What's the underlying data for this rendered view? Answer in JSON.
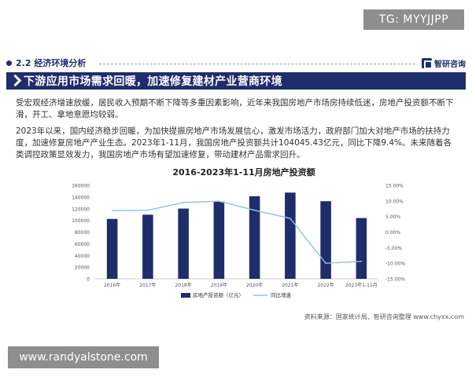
{
  "watermark_top": "TG: MYYJJPP",
  "section": {
    "label": "2.2 经济环境分析",
    "brand": "智研咨询"
  },
  "banner": {
    "title": "下游应用市场需求回暖，加速修复建材产业营商环境"
  },
  "paragraphs": [
    "受宏观经济增速放缓，居民收入预期不断下降等多重因素影响，近年来我国房地产市场房持续低迷，房地产投资额不断下滑，开工、拿地意愿均较弱。",
    "2023年以来，国内经济稳步回暖，为加快提振房地产市场发展信心，激发市场活力，政府部门加大对地产市场的扶持力度，加速修复房地产产业生态。2023年1-11月，我国房地产投资额共计104045.43亿元，同比下降9.4%。未来随着各类调控政策显效发力，我国房地产市场有望加速修复，带动建材产品需求回升。"
  ],
  "chart_data": {
    "type": "bar",
    "title": "2016-2023年1-11月房地产投资额",
    "categories": [
      "2016年",
      "2017年",
      "2018年",
      "2019年",
      "2020年",
      "2021年",
      "2022年",
      "2023年1-11月"
    ],
    "series": [
      {
        "name": "房地产投资额（亿元）",
        "type": "bar",
        "axis": "left",
        "values": [
          102581,
          109799,
          120264,
          132194,
          141443,
          147602,
          132895,
          104045
        ]
      },
      {
        "name": "同比增速",
        "type": "line",
        "axis": "right",
        "values": [
          6.9,
          7.0,
          9.5,
          9.9,
          7.0,
          4.4,
          -10.0,
          -9.4
        ]
      }
    ],
    "ylim_left": [
      0,
      160000
    ],
    "yticks_left": [
      "0",
      "20000",
      "40000",
      "60000",
      "80000",
      "100000",
      "120000",
      "140000",
      "160000"
    ],
    "ylim_right": [
      -15,
      15
    ],
    "yticks_right": [
      "-15.00%",
      "-10.00%",
      "-5.00%",
      "0.00%",
      "5.00%",
      "10.00%",
      "15.00%"
    ],
    "legend_position": "bottom",
    "colors": {
      "bar": "#1f2d6b",
      "line": "#8fc3dc"
    }
  },
  "source": "资料来源：国家统计局、智研咨询整理 www.chyxx.com",
  "watermark_bottom": "www.randyalstone.com"
}
